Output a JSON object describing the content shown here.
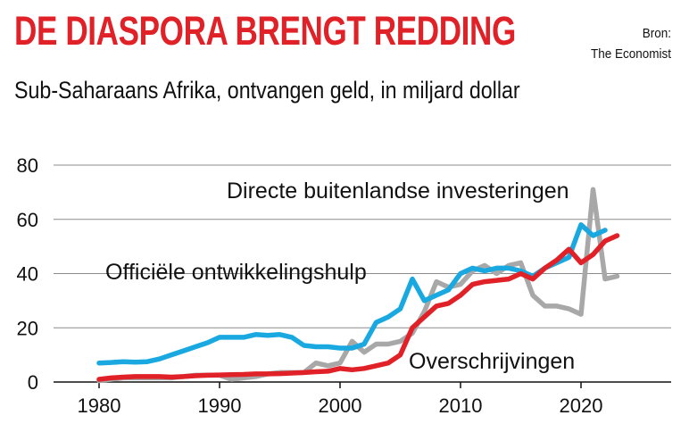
{
  "header": {
    "title": "DE DIASPORA BRENGT REDDING",
    "subtitle": "Sub-Saharaans Afrika, ontvangen geld, in miljard dollar",
    "source_label": "Bron:",
    "source_name": "The Economist"
  },
  "chart_data": {
    "type": "line",
    "title": "DE DIASPORA BRENGT REDDING",
    "subtitle": "Sub-Saharaans Afrika, ontvangen geld, in miljard dollar",
    "xlabel": "",
    "ylabel": "",
    "xlim": [
      1976,
      2028
    ],
    "ylim": [
      0,
      80
    ],
    "x_ticks": [
      1980,
      1990,
      2000,
      2010,
      2020
    ],
    "y_ticks": [
      0,
      20,
      40,
      60,
      80
    ],
    "grid": "horizontal",
    "series": [
      {
        "name": "Directe buitenlandse investeringen",
        "color": "#a8a8a8",
        "points": [
          [
            1980,
            0.5
          ],
          [
            1981,
            1
          ],
          [
            1982,
            1.5
          ],
          [
            1983,
            1.5
          ],
          [
            1984,
            1.5
          ],
          [
            1985,
            1.5
          ],
          [
            1986,
            1.5
          ],
          [
            1987,
            2
          ],
          [
            1988,
            2.5
          ],
          [
            1989,
            2.5
          ],
          [
            1990,
            2.5
          ],
          [
            1991,
            1
          ],
          [
            1992,
            1.5
          ],
          [
            1993,
            2
          ],
          [
            1994,
            3
          ],
          [
            1995,
            3.5
          ],
          [
            1996,
            3.5
          ],
          [
            1997,
            3.5
          ],
          [
            1998,
            7
          ],
          [
            1999,
            6
          ],
          [
            2000,
            7
          ],
          [
            2001,
            15
          ],
          [
            2002,
            11
          ],
          [
            2003,
            14
          ],
          [
            2004,
            14
          ],
          [
            2005,
            15
          ],
          [
            2006,
            18
          ],
          [
            2007,
            26
          ],
          [
            2008,
            37
          ],
          [
            2009,
            35
          ],
          [
            2010,
            36
          ],
          [
            2011,
            41
          ],
          [
            2012,
            43
          ],
          [
            2013,
            40
          ],
          [
            2014,
            43
          ],
          [
            2015,
            44
          ],
          [
            2016,
            32
          ],
          [
            2017,
            28
          ],
          [
            2018,
            28
          ],
          [
            2019,
            27
          ],
          [
            2020,
            25
          ],
          [
            2021,
            71
          ],
          [
            2022,
            38
          ],
          [
            2023,
            39
          ]
        ]
      },
      {
        "name": "Officiële ontwikkelingshulp",
        "color": "#19a9e0",
        "points": [
          [
            1980,
            7
          ],
          [
            1981,
            7.2
          ],
          [
            1982,
            7.5
          ],
          [
            1983,
            7.3
          ],
          [
            1984,
            7.5
          ],
          [
            1985,
            8.5
          ],
          [
            1986,
            10
          ],
          [
            1987,
            11.5
          ],
          [
            1988,
            13
          ],
          [
            1989,
            14.5
          ],
          [
            1990,
            16.5
          ],
          [
            1991,
            16.5
          ],
          [
            1992,
            16.5
          ],
          [
            1993,
            17.5
          ],
          [
            1994,
            17.2
          ],
          [
            1995,
            17.5
          ],
          [
            1996,
            16.5
          ],
          [
            1997,
            13.5
          ],
          [
            1998,
            13
          ],
          [
            1999,
            13
          ],
          [
            2000,
            12.5
          ],
          [
            2001,
            12.5
          ],
          [
            2002,
            14
          ],
          [
            2003,
            22
          ],
          [
            2004,
            24
          ],
          [
            2005,
            27
          ],
          [
            2006,
            38
          ],
          [
            2007,
            30
          ],
          [
            2008,
            32
          ],
          [
            2009,
            34
          ],
          [
            2010,
            40
          ],
          [
            2011,
            42
          ],
          [
            2012,
            41
          ],
          [
            2013,
            42
          ],
          [
            2014,
            42
          ],
          [
            2015,
            41
          ],
          [
            2016,
            39
          ],
          [
            2017,
            42
          ],
          [
            2018,
            44
          ],
          [
            2019,
            46
          ],
          [
            2020,
            58
          ],
          [
            2021,
            54
          ],
          [
            2022,
            56
          ]
        ]
      },
      {
        "name": "Overschrijvingen",
        "color": "#e02228",
        "points": [
          [
            1980,
            1
          ],
          [
            1981,
            1.5
          ],
          [
            1982,
            1.8
          ],
          [
            1983,
            2
          ],
          [
            1984,
            2
          ],
          [
            1985,
            2
          ],
          [
            1986,
            1.8
          ],
          [
            1987,
            2
          ],
          [
            1988,
            2.3
          ],
          [
            1989,
            2.5
          ],
          [
            1990,
            2.6
          ],
          [
            1991,
            2.7
          ],
          [
            1992,
            2.8
          ],
          [
            1993,
            3
          ],
          [
            1994,
            3
          ],
          [
            1995,
            3.1
          ],
          [
            1996,
            3.3
          ],
          [
            1997,
            3.5
          ],
          [
            1998,
            3.8
          ],
          [
            1999,
            4
          ],
          [
            2000,
            5
          ],
          [
            2001,
            4.5
          ],
          [
            2002,
            5
          ],
          [
            2003,
            6
          ],
          [
            2004,
            7
          ],
          [
            2005,
            10
          ],
          [
            2006,
            20
          ],
          [
            2007,
            24
          ],
          [
            2008,
            28
          ],
          [
            2009,
            29
          ],
          [
            2010,
            32
          ],
          [
            2011,
            36
          ],
          [
            2012,
            37
          ],
          [
            2013,
            37.5
          ],
          [
            2014,
            38
          ],
          [
            2015,
            40
          ],
          [
            2016,
            38
          ],
          [
            2017,
            42
          ],
          [
            2018,
            45
          ],
          [
            2019,
            49
          ],
          [
            2020,
            44
          ],
          [
            2021,
            47
          ],
          [
            2022,
            52
          ],
          [
            2023,
            54
          ]
        ]
      }
    ],
    "annotations": [
      {
        "text": "Directe buitenlandse investeringen",
        "series": "Directe buitenlandse investeringen"
      },
      {
        "text": "Officiële ontwikkelingshulp",
        "series": "Officiële ontwikkelingshulp"
      },
      {
        "text": "Overschrijvingen",
        "series": "Overschrijvingen"
      }
    ]
  }
}
